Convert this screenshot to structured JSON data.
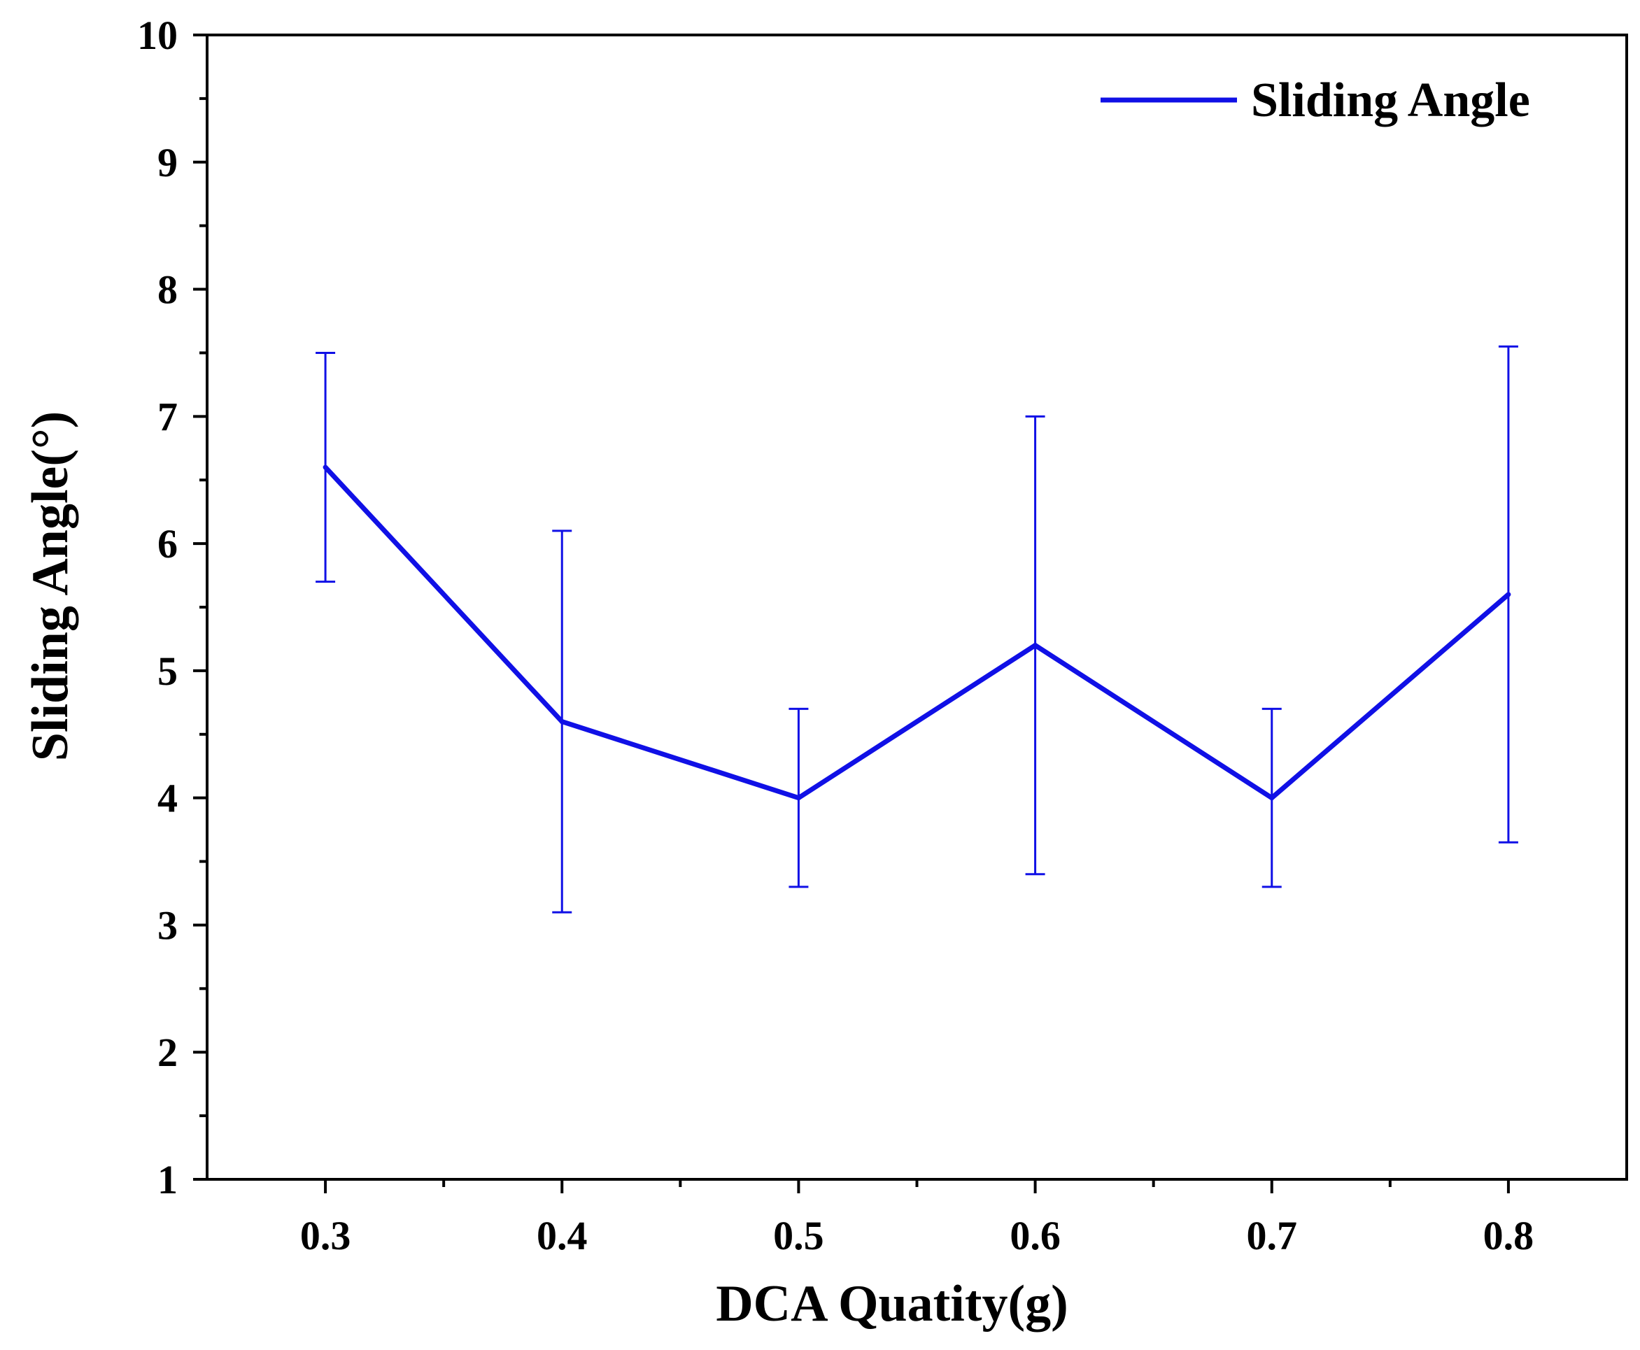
{
  "chart_data": {
    "type": "line",
    "title": "",
    "xlabel": "DCA Quatity(g)",
    "ylabel": "Sliding Angle(°)",
    "xlim": [
      0.25,
      0.85
    ],
    "ylim": [
      1,
      10
    ],
    "x_ticks": [
      0.3,
      0.4,
      0.5,
      0.6,
      0.7,
      0.8
    ],
    "x_tick_labels": [
      "0.3",
      "0.4",
      "0.5",
      "0.6",
      "0.7",
      "0.8"
    ],
    "x_minor_ticks": [
      0.35,
      0.45,
      0.55,
      0.65,
      0.75
    ],
    "y_ticks": [
      1,
      2,
      3,
      4,
      5,
      6,
      7,
      8,
      9,
      10
    ],
    "y_tick_labels": [
      "1",
      "2",
      "3",
      "4",
      "5",
      "6",
      "7",
      "8",
      "9",
      "10"
    ],
    "y_minor_ticks": [
      1.5,
      2.5,
      3.5,
      4.5,
      5.5,
      6.5,
      7.5,
      8.5,
      9.5
    ],
    "grid": false,
    "legend": {
      "position": "top-right",
      "entries": [
        "Sliding Angle"
      ]
    },
    "series": [
      {
        "name": "Sliding Angle",
        "color": "#1010e6",
        "x": [
          0.3,
          0.4,
          0.5,
          0.6,
          0.7,
          0.8
        ],
        "values": [
          6.6,
          4.6,
          4.0,
          5.2,
          4.0,
          5.6
        ],
        "error_low": [
          5.7,
          3.1,
          3.3,
          3.4,
          3.3,
          3.65
        ],
        "error_high": [
          7.5,
          6.1,
          4.7,
          7.0,
          4.7,
          7.55
        ]
      }
    ]
  }
}
